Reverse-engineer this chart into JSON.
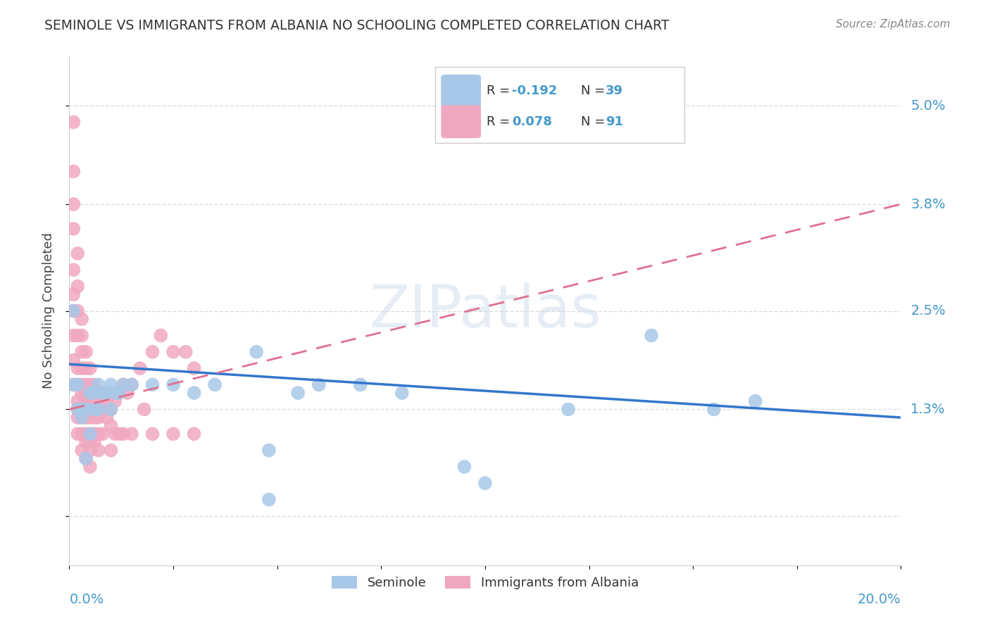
{
  "title": "SEMINOLE VS IMMIGRANTS FROM ALBANIA NO SCHOOLING COMPLETED CORRELATION CHART",
  "source": "Source: ZipAtlas.com",
  "ylabel": "No Schooling Completed",
  "watermark": "ZIPatlas",
  "legend_label1": "Seminole",
  "legend_label2": "Immigrants from Albania",
  "seminole_color": "#a8c8e8",
  "albania_color": "#f0a8c0",
  "seminole_line_color": "#3377cc",
  "albania_line_color": "#e07090",
  "ytick_values": [
    0.0,
    0.013,
    0.025,
    0.038,
    0.05
  ],
  "ytick_labels": [
    "",
    "1.3%",
    "2.5%",
    "3.8%",
    "5.0%"
  ],
  "xlim": [
    0.0,
    0.2
  ],
  "ylim": [
    -0.006,
    0.056
  ],
  "title_color": "#333333",
  "source_color": "#888888",
  "grid_color": "#dddddd",
  "axis_label_color": "#4499cc",
  "r_value_color": "#4499cc",
  "sem_line_x0": 0.0,
  "sem_line_y0": 0.0185,
  "sem_line_x1": 0.2,
  "sem_line_y1": 0.012,
  "alb_line_x0": 0.0,
  "alb_line_y0": 0.013,
  "alb_line_x1": 0.2,
  "alb_line_y1": 0.038,
  "seminole_x": [
    0.001,
    0.001,
    0.002,
    0.002,
    0.003,
    0.003,
    0.004,
    0.004,
    0.005,
    0.005,
    0.006,
    0.006,
    0.007,
    0.007,
    0.008,
    0.009,
    0.01,
    0.01,
    0.011,
    0.012,
    0.013,
    0.015,
    0.02,
    0.025,
    0.03,
    0.035,
    0.045,
    0.055,
    0.06,
    0.07,
    0.08,
    0.12,
    0.14,
    0.155,
    0.165,
    0.048,
    0.095,
    0.1,
    0.048
  ],
  "seminole_y": [
    0.025,
    0.016,
    0.016,
    0.013,
    0.013,
    0.012,
    0.013,
    0.007,
    0.015,
    0.01,
    0.015,
    0.013,
    0.016,
    0.013,
    0.015,
    0.015,
    0.013,
    0.016,
    0.015,
    0.015,
    0.016,
    0.016,
    0.016,
    0.016,
    0.015,
    0.016,
    0.02,
    0.015,
    0.016,
    0.016,
    0.015,
    0.013,
    0.022,
    0.013,
    0.014,
    0.008,
    0.006,
    0.004,
    0.002
  ],
  "albania_x": [
    0.001,
    0.001,
    0.001,
    0.001,
    0.001,
    0.001,
    0.001,
    0.001,
    0.001,
    0.001,
    0.002,
    0.002,
    0.002,
    0.002,
    0.002,
    0.002,
    0.002,
    0.002,
    0.002,
    0.002,
    0.003,
    0.003,
    0.003,
    0.003,
    0.003,
    0.003,
    0.003,
    0.003,
    0.003,
    0.003,
    0.004,
    0.004,
    0.004,
    0.004,
    0.004,
    0.004,
    0.004,
    0.004,
    0.004,
    0.004,
    0.005,
    0.005,
    0.005,
    0.005,
    0.005,
    0.005,
    0.005,
    0.005,
    0.005,
    0.005,
    0.006,
    0.006,
    0.006,
    0.006,
    0.006,
    0.006,
    0.006,
    0.007,
    0.007,
    0.007,
    0.007,
    0.007,
    0.007,
    0.008,
    0.008,
    0.008,
    0.009,
    0.009,
    0.01,
    0.01,
    0.01,
    0.01,
    0.011,
    0.011,
    0.012,
    0.012,
    0.013,
    0.013,
    0.014,
    0.015,
    0.015,
    0.017,
    0.018,
    0.02,
    0.02,
    0.022,
    0.025,
    0.025,
    0.028,
    0.03,
    0.03
  ],
  "albania_y": [
    0.048,
    0.042,
    0.038,
    0.035,
    0.03,
    0.027,
    0.025,
    0.022,
    0.019,
    0.016,
    0.032,
    0.028,
    0.025,
    0.022,
    0.018,
    0.016,
    0.014,
    0.013,
    0.012,
    0.01,
    0.024,
    0.022,
    0.02,
    0.018,
    0.016,
    0.015,
    0.013,
    0.012,
    0.01,
    0.008,
    0.02,
    0.018,
    0.016,
    0.015,
    0.014,
    0.013,
    0.012,
    0.01,
    0.009,
    0.007,
    0.018,
    0.016,
    0.015,
    0.014,
    0.013,
    0.012,
    0.01,
    0.009,
    0.008,
    0.006,
    0.016,
    0.015,
    0.014,
    0.013,
    0.012,
    0.01,
    0.009,
    0.015,
    0.014,
    0.013,
    0.012,
    0.01,
    0.008,
    0.015,
    0.013,
    0.01,
    0.014,
    0.012,
    0.015,
    0.013,
    0.011,
    0.008,
    0.014,
    0.01,
    0.015,
    0.01,
    0.016,
    0.01,
    0.015,
    0.016,
    0.01,
    0.018,
    0.013,
    0.02,
    0.01,
    0.022,
    0.02,
    0.01,
    0.02,
    0.018,
    0.01
  ]
}
